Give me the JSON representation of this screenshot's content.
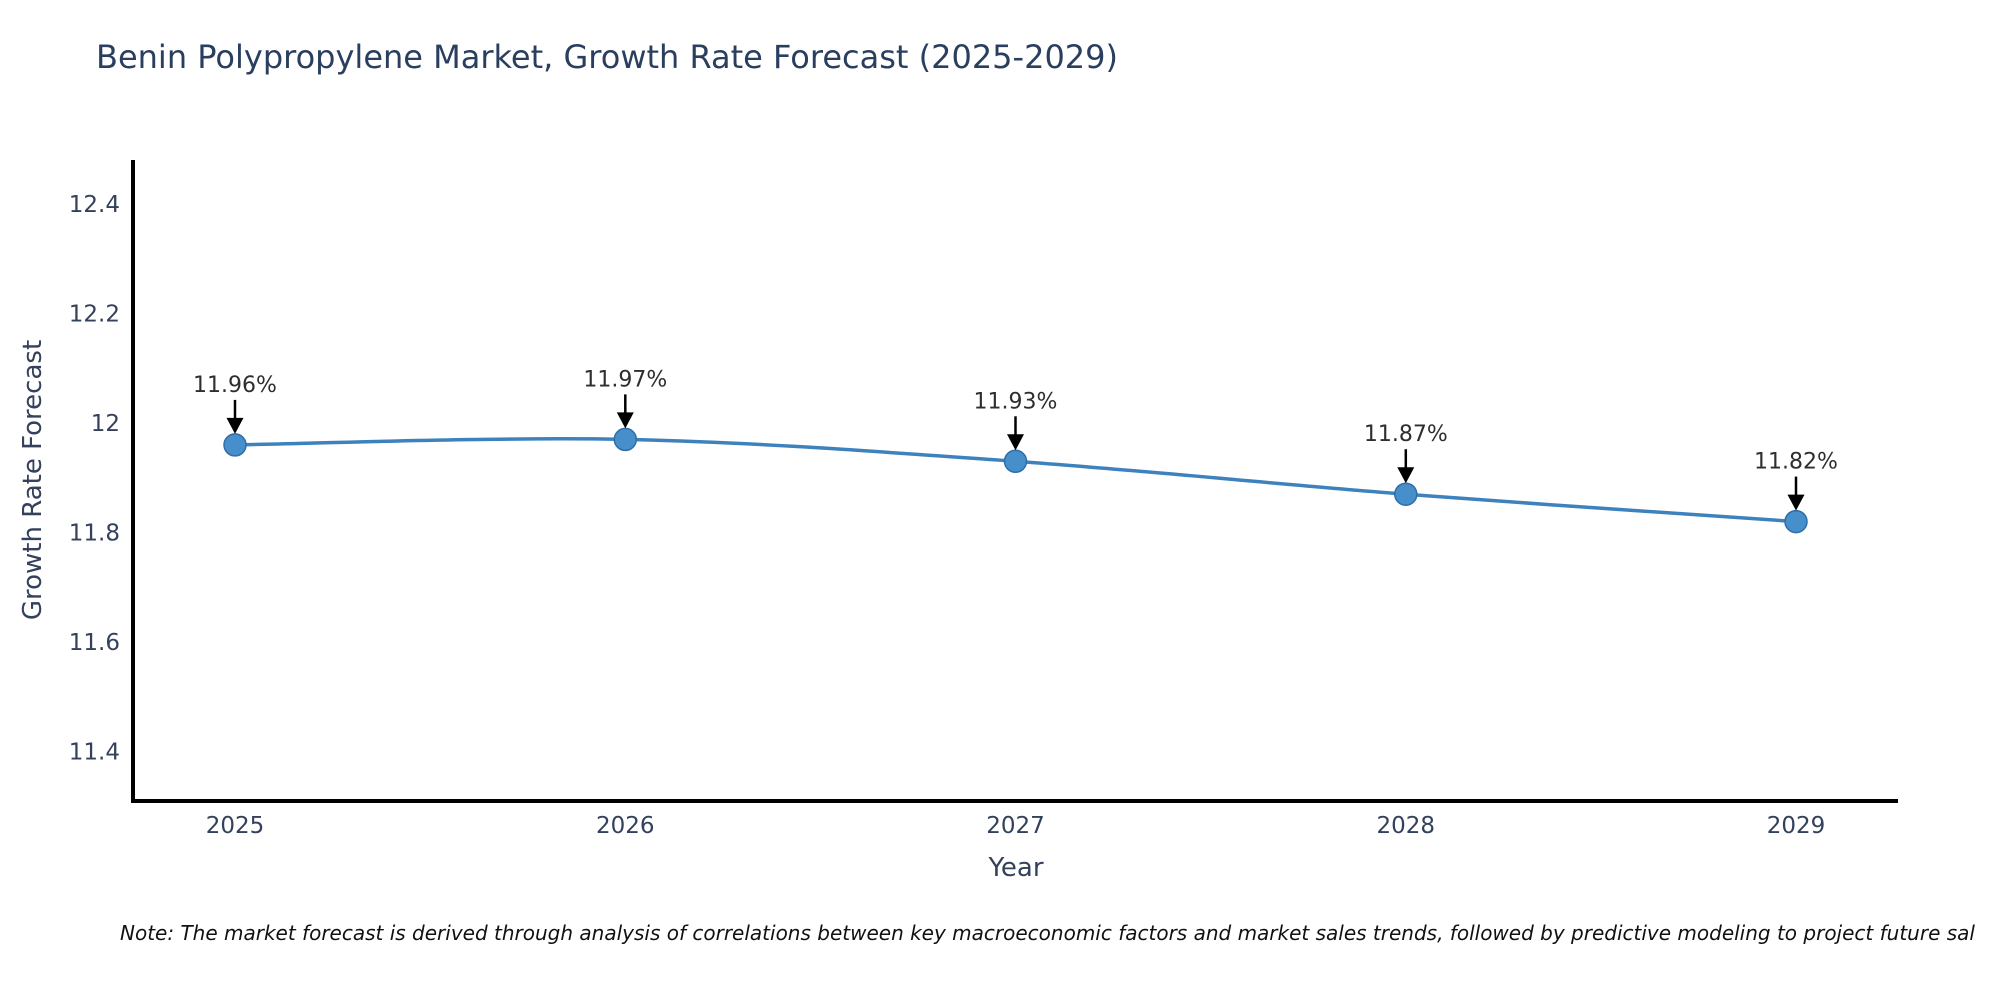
{
  "title": "Benin Polypropylene Market, Growth Rate Forecast (2025-2029)",
  "note": "Note: The market forecast is derived through analysis of correlations between key macroeconomic factors and market sales trends, followed by predictive modeling to project future sal",
  "colors": {
    "title_text": "#2a3f5f",
    "axis_text": "#33415c",
    "annotation_text": "#2e2e2e",
    "spine": "#000000",
    "background": "#ffffff",
    "line": "#3d82bd",
    "marker_fill": "#478fca",
    "marker_edge": "#2f6da8",
    "arrow": "#000000"
  },
  "chart_data": {
    "type": "line",
    "title": "Benin Polypropylene Market, Growth Rate Forecast (2025-2029)",
    "xlabel": "Year",
    "ylabel": "Growth Rate Forecast",
    "categories": [
      "2025",
      "2026",
      "2027",
      "2028",
      "2029"
    ],
    "series": [
      {
        "name": "Growth Rate Forecast",
        "values": [
          11.96,
          11.97,
          11.93,
          11.87,
          11.82
        ]
      }
    ],
    "point_labels": [
      "11.96%",
      "11.97%",
      "11.93%",
      "11.87%",
      "11.82%"
    ],
    "unit": "%",
    "y_ticks": [
      {
        "value": 11.4,
        "label": "11.4"
      },
      {
        "value": 11.6,
        "label": "11.6"
      },
      {
        "value": 11.8,
        "label": "11.8"
      },
      {
        "value": 12.0,
        "label": "12"
      },
      {
        "value": 12.2,
        "label": "12.2"
      },
      {
        "value": 12.4,
        "label": "12.4"
      }
    ],
    "ylim": [
      11.31,
      12.48
    ],
    "grid": false,
    "legend": "none",
    "annotations": "value label with down arrow above each point",
    "line_smoothing": true
  }
}
